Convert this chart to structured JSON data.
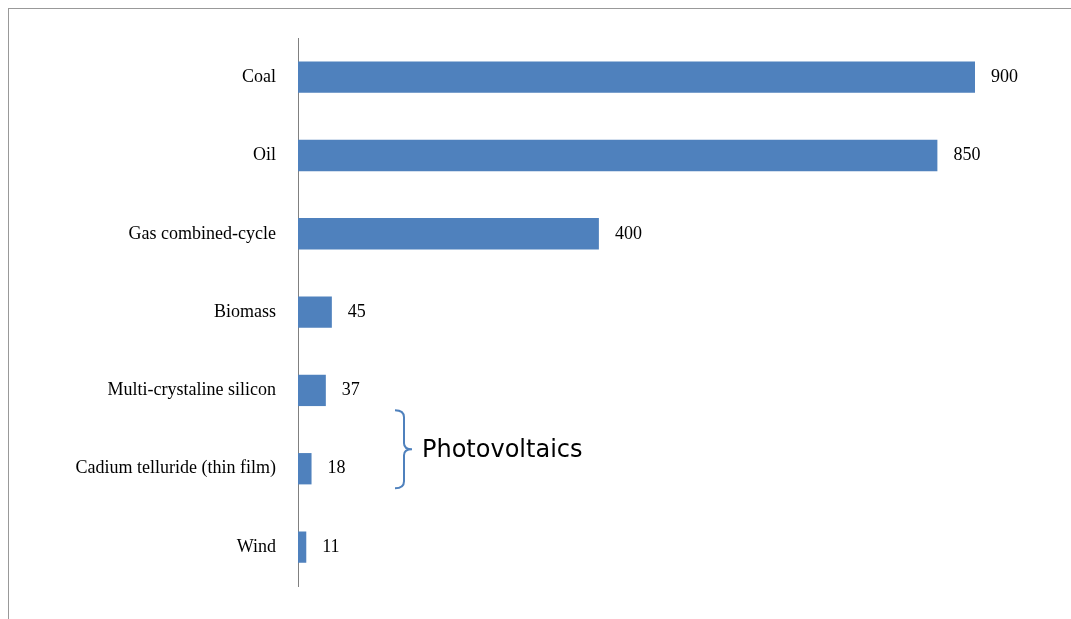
{
  "chart_data": {
    "type": "bar",
    "orientation": "horizontal",
    "categories": [
      "Coal",
      "Oil",
      "Gas combined-cycle",
      "Biomass",
      "Multi-crystaline silicon",
      "Cadium telluride (thin film)",
      "Wind"
    ],
    "values": [
      900,
      850,
      400,
      45,
      37,
      18,
      11
    ],
    "color": "#4f81bd",
    "data_labels": true,
    "grid": false,
    "legend": false,
    "annotations": [
      "Photovoltaics"
    ]
  }
}
